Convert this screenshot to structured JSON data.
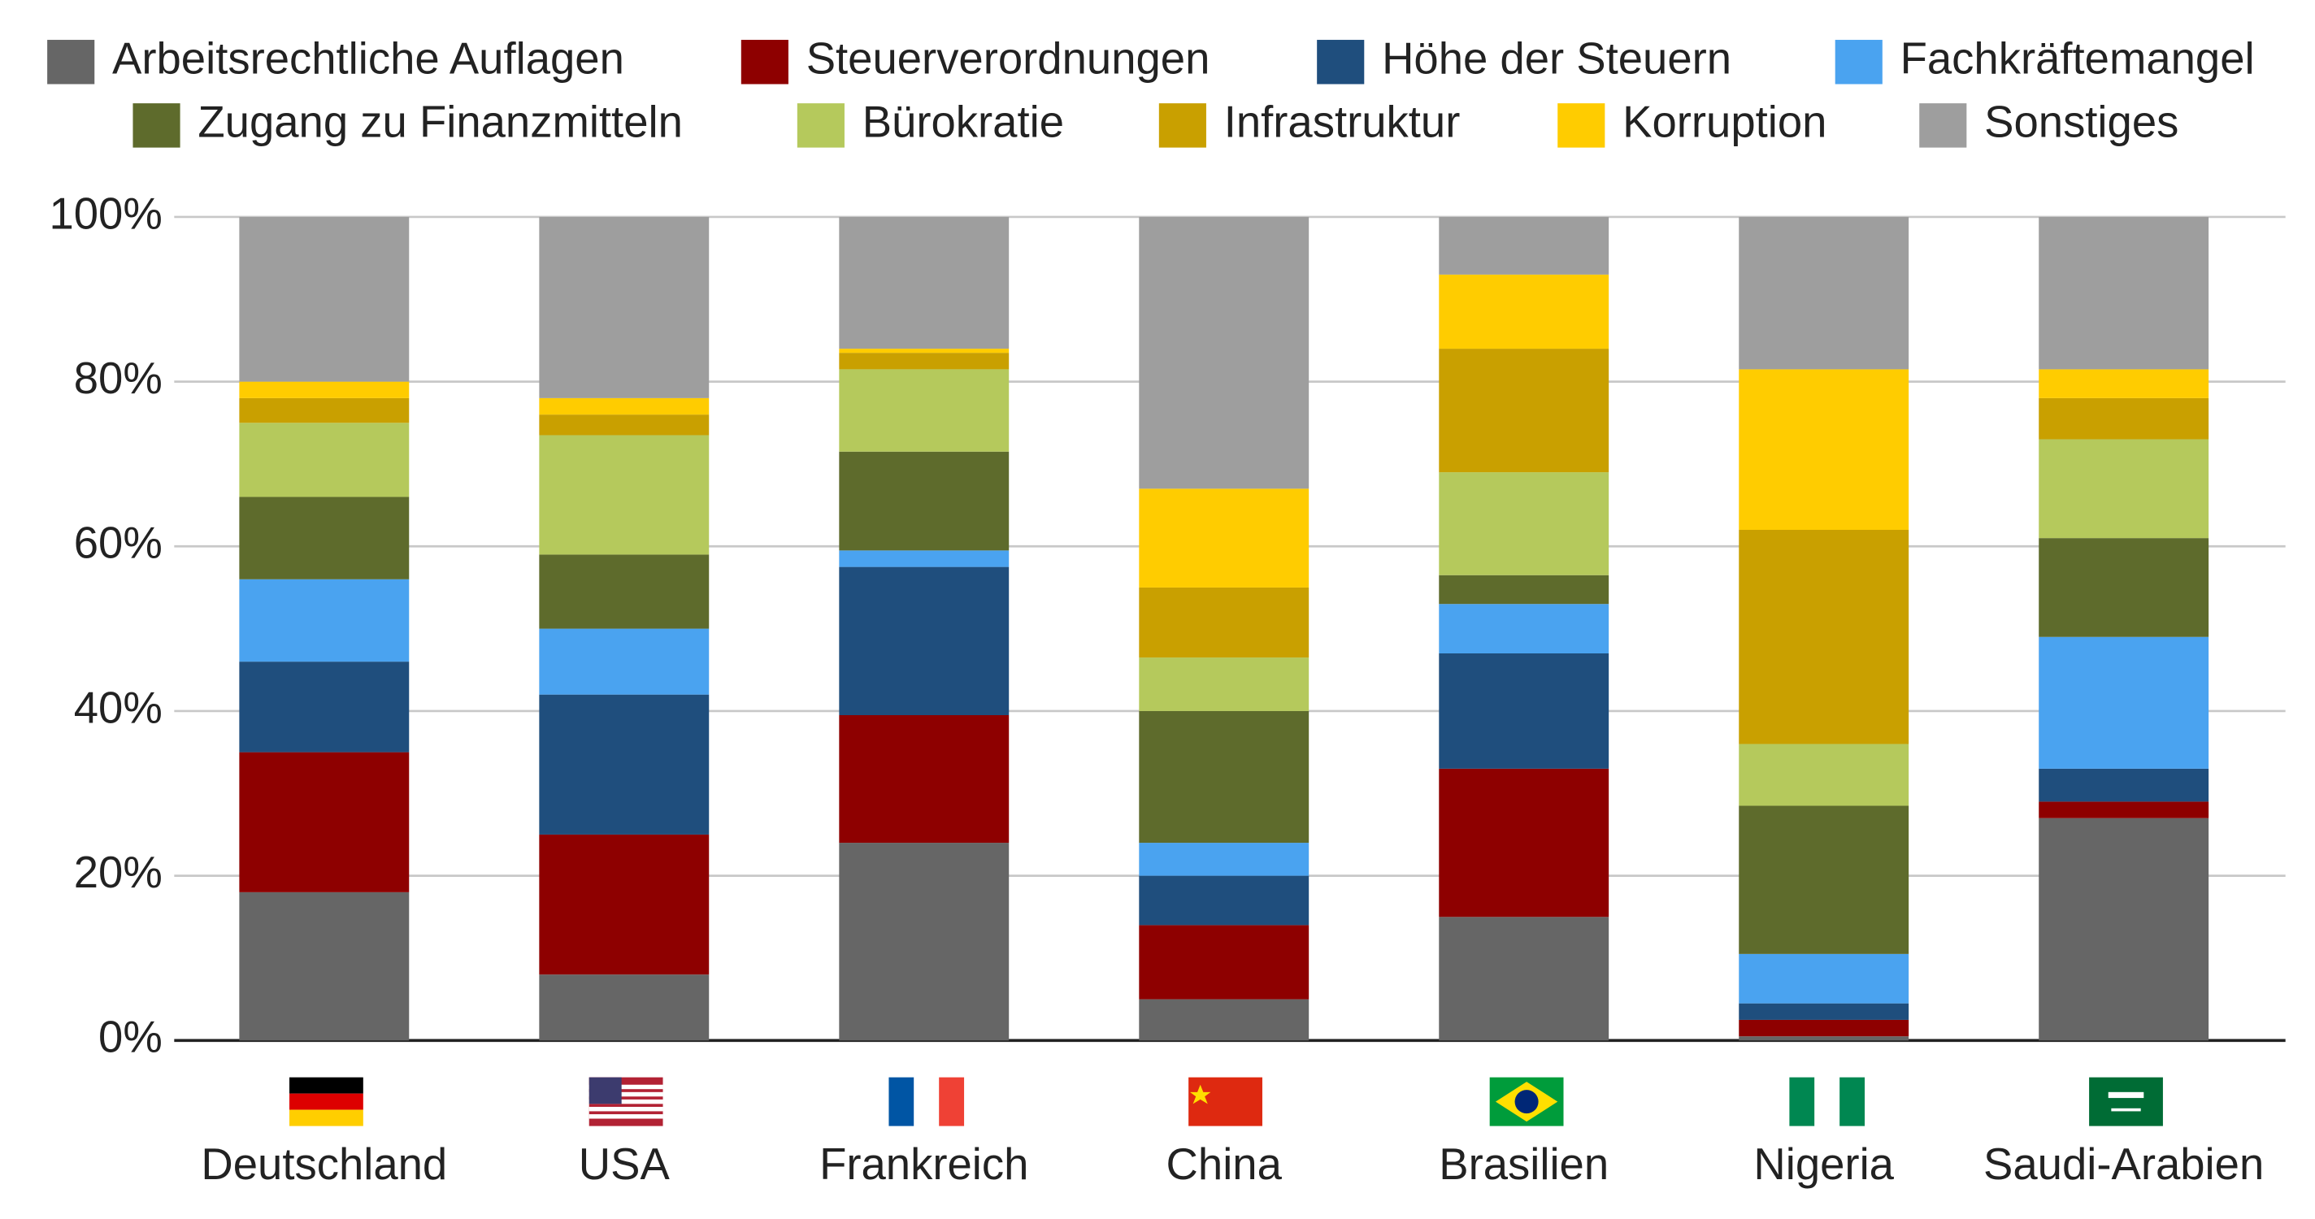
{
  "chart_data": {
    "type": "stacked-bar",
    "categories": [
      "Deutschland",
      "USA",
      "Frankreich",
      "China",
      "Brasilien",
      "Nigeria",
      "Saudi-Arabien"
    ],
    "series": [
      {
        "name": "Arbeitsrechtliche Auflagen",
        "color": "#666666",
        "values": [
          18,
          8,
          24,
          5,
          15,
          0.5,
          27
        ]
      },
      {
        "name": "Steuerverordnungen",
        "color": "#8e0000",
        "values": [
          17,
          17,
          15.5,
          9,
          18,
          2,
          2
        ]
      },
      {
        "name": "Höhe der Steuern",
        "color": "#1f4e7d",
        "values": [
          11,
          17,
          18,
          6,
          14,
          2,
          4
        ]
      },
      {
        "name": "Fachkräftemangel",
        "color": "#4aa3f0",
        "values": [
          10,
          8,
          2,
          4,
          6,
          6,
          16
        ]
      },
      {
        "name": "Zugang zu Finanzmitteln",
        "color": "#5e6b2c",
        "values": [
          10,
          9,
          12,
          16,
          3.5,
          18,
          12
        ]
      },
      {
        "name": "Bürokratie",
        "color": "#b5c95c",
        "values": [
          9,
          14.5,
          10,
          6.5,
          12.5,
          7.5,
          12
        ]
      },
      {
        "name": "Infrastruktur",
        "color": "#c9a000",
        "values": [
          3,
          2.5,
          2,
          8.5,
          15,
          26,
          5
        ]
      },
      {
        "name": "Korruption",
        "color": "#ffcc00",
        "values": [
          2,
          2,
          0.5,
          12,
          9,
          19.5,
          3.5
        ]
      },
      {
        "name": "Sonstiges",
        "color": "#9e9e9e",
        "values": [
          20,
          22,
          16,
          33,
          7,
          18.5,
          18.5
        ]
      }
    ],
    "ylim": [
      0,
      100
    ],
    "yticks": [
      {
        "value": 0,
        "label": "0%"
      },
      {
        "value": 20,
        "label": "20%"
      },
      {
        "value": 40,
        "label": "40%"
      },
      {
        "value": 60,
        "label": "60%"
      },
      {
        "value": 80,
        "label": "80%"
      },
      {
        "value": 100,
        "label": "100%"
      }
    ],
    "grid": true
  }
}
